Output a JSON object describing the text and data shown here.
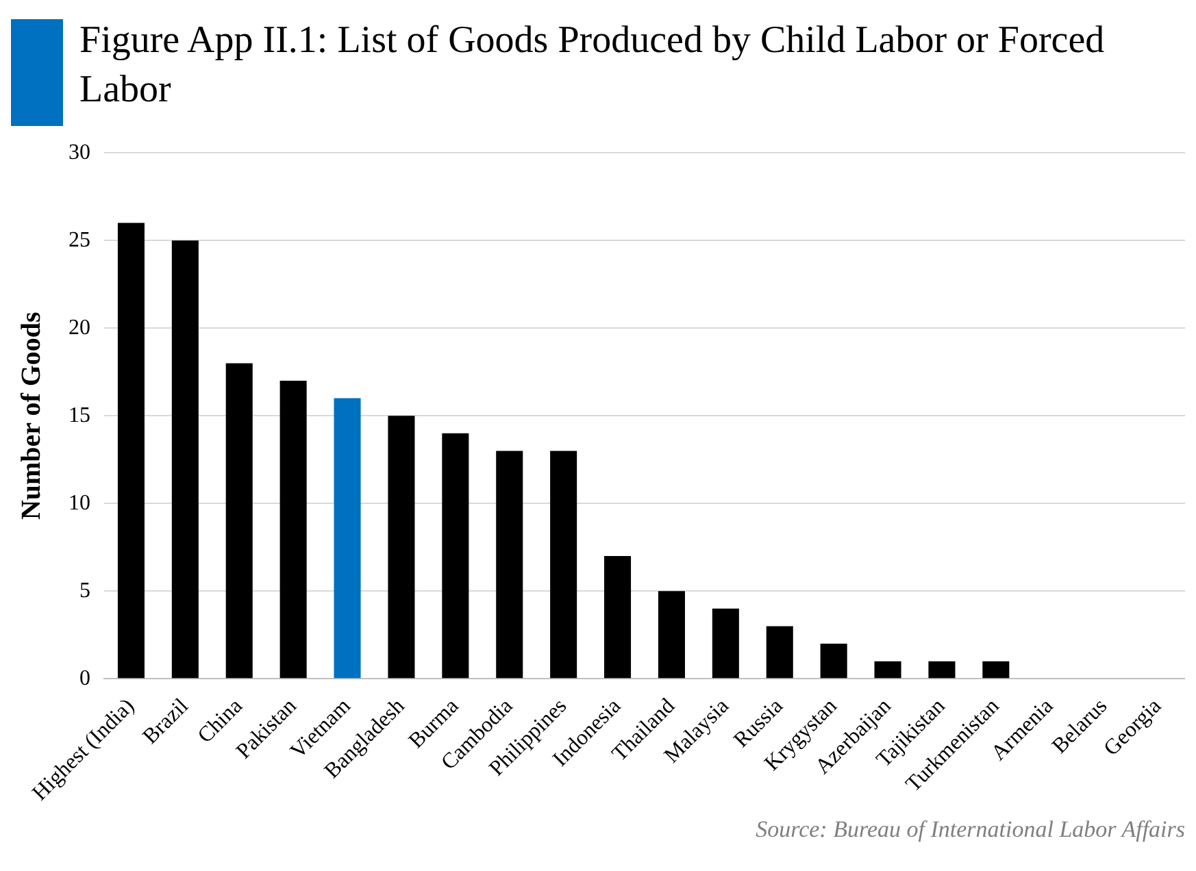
{
  "chart_data": {
    "type": "bar",
    "title": "Figure App II.1: List of Goods Produced by Child Labor or Forced Labor",
    "ylabel": "Number of Goods",
    "categories": [
      "Highest (India)",
      "Brazil",
      "China",
      "Pakistan",
      "Vietnam",
      "Bangladesh",
      "Burma",
      "Cambodia",
      "Philippines",
      "Indonesia",
      "Thailand",
      "Malaysia",
      "Russia",
      "Krygystan",
      "Azerbaijan",
      "Tajikistan",
      "Turkmenistan",
      "Armenia",
      "Belarus",
      "Georgia"
    ],
    "values": [
      26,
      25,
      18,
      17,
      16,
      15,
      14,
      13,
      13,
      7,
      5,
      4,
      3,
      2,
      1,
      1,
      1,
      0,
      0,
      0
    ],
    "colors": [
      "#000000",
      "#000000",
      "#000000",
      "#000000",
      "#0070c0",
      "#000000",
      "#000000",
      "#000000",
      "#000000",
      "#000000",
      "#000000",
      "#000000",
      "#000000",
      "#000000",
      "#000000",
      "#000000",
      "#000000",
      "#000000",
      "#000000",
      "#000000"
    ],
    "ylim": [
      0,
      30
    ],
    "yticks": [
      0,
      5,
      10,
      15,
      20,
      25,
      30
    ],
    "grid": "y",
    "annotations": [
      "Source: Bureau of International Labor Affairs"
    ]
  }
}
